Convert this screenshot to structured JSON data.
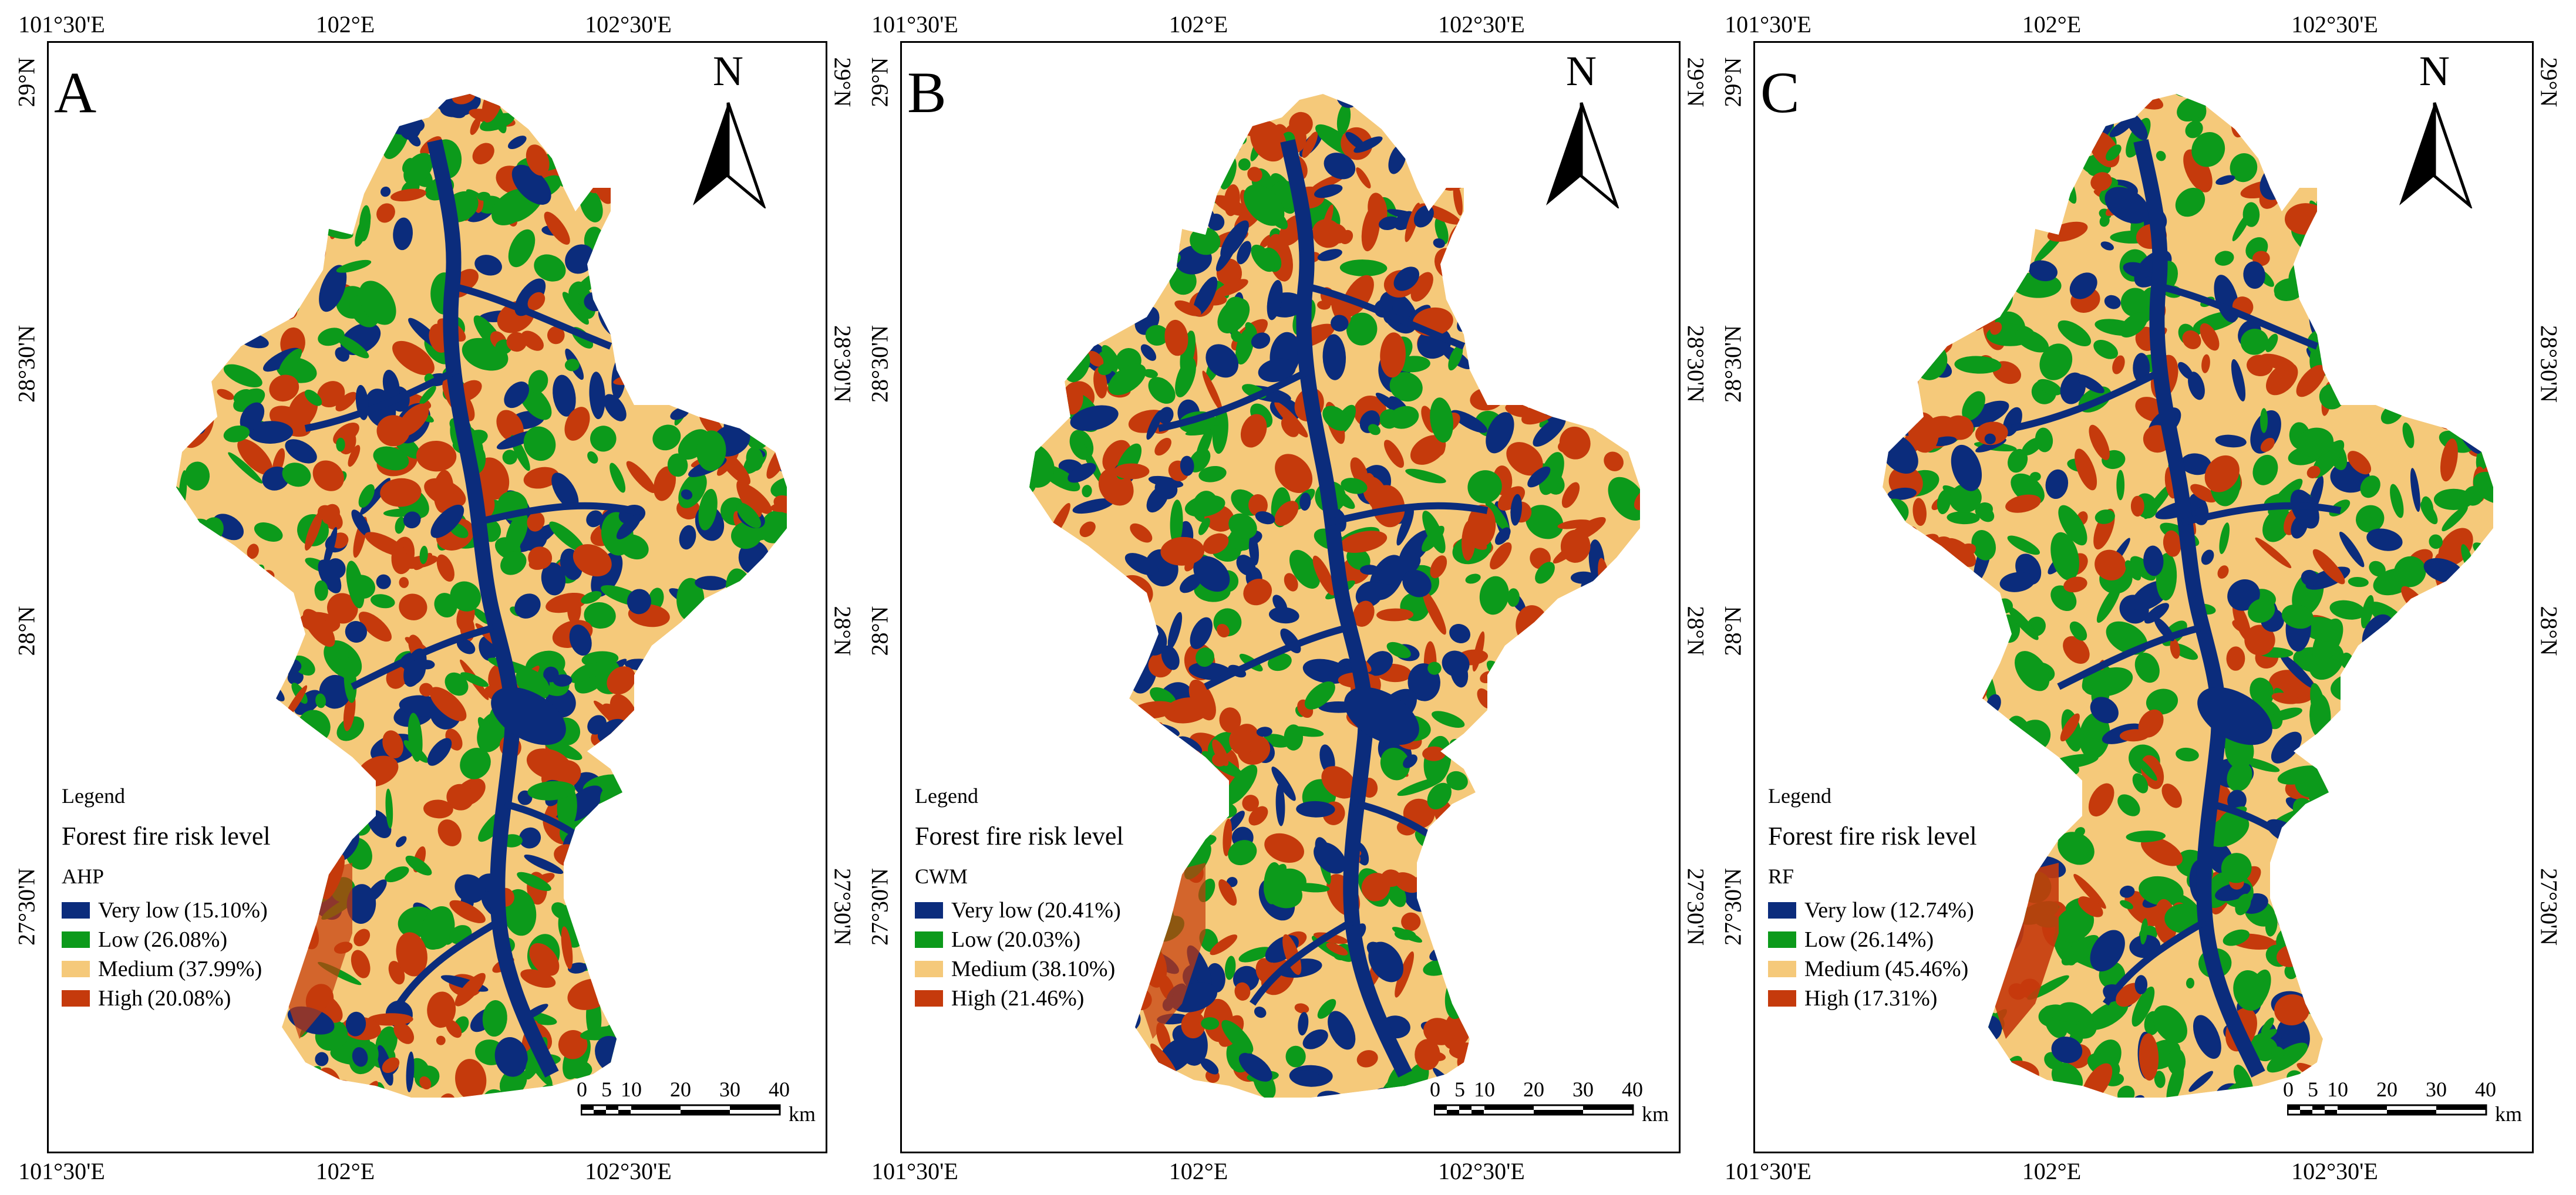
{
  "colors": {
    "very_low": "#0b2c7c",
    "low": "#0c9a1b",
    "medium": "#f5c97a",
    "high": "#c53a0c",
    "frame": "#000000"
  },
  "axes": {
    "lon_ticks": [
      "101°30'E",
      "102°E",
      "102°30'E"
    ],
    "lat_ticks": [
      "29°N",
      "28°30'N",
      "28°N",
      "27°30'N"
    ]
  },
  "north_arrow": {
    "letter": "N",
    "icon": "north-arrow-icon"
  },
  "scale_bar": {
    "numbers": [
      "0",
      "5",
      "10",
      "20",
      "30",
      "40"
    ],
    "unit": "km"
  },
  "legend": {
    "heading": "Legend",
    "title": "Forest fire risk level",
    "labels": [
      "Very low",
      "Low",
      "Medium",
      "High"
    ]
  },
  "panels": [
    {
      "letter": "A",
      "model": "AHP",
      "percentages": [
        "(15.10%)",
        "(26.08%)",
        "(37.99%)",
        "(20.08%)"
      ]
    },
    {
      "letter": "B",
      "model": "CWM",
      "percentages": [
        "(20.41%)",
        "(20.03%)",
        "(38.10%)",
        "(21.46%)"
      ]
    },
    {
      "letter": "C",
      "model": "RF",
      "percentages": [
        "(12.74%)",
        "(26.14%)",
        "(45.46%)",
        "(17.31%)"
      ]
    }
  ]
}
